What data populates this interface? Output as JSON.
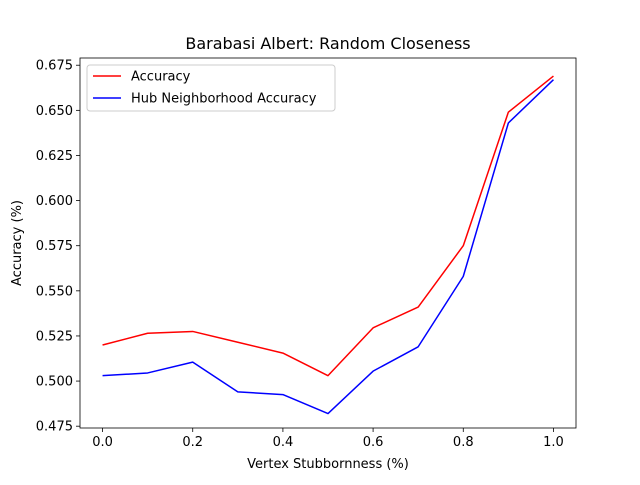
{
  "chart_data": {
    "type": "line",
    "title": "Barabasi Albert: Random Closeness",
    "xlabel": "Vertex Stubbornness (%)",
    "ylabel": "Accuracy (%)",
    "x": [
      0.0,
      0.1,
      0.2,
      0.3,
      0.4,
      0.5,
      0.6,
      0.7,
      0.8,
      0.9,
      1.0
    ],
    "xlim": [
      -0.05,
      1.05
    ],
    "ylim": [
      0.474,
      0.679
    ],
    "xticks": [
      0.0,
      0.2,
      0.4,
      0.6,
      0.8,
      1.0
    ],
    "xtick_labels": [
      "0.0",
      "0.2",
      "0.4",
      "0.6",
      "0.8",
      "1.0"
    ],
    "yticks": [
      0.475,
      0.5,
      0.525,
      0.55,
      0.575,
      0.6,
      0.625,
      0.65,
      0.675
    ],
    "ytick_labels": [
      "0.475",
      "0.500",
      "0.525",
      "0.550",
      "0.575",
      "0.600",
      "0.625",
      "0.650",
      "0.675"
    ],
    "grid": false,
    "legend_position": "top-left",
    "series": [
      {
        "name": "Accuracy",
        "color": "#ff0000",
        "values": [
          0.52,
          0.5265,
          0.5275,
          0.5215,
          0.5155,
          0.503,
          0.5295,
          0.541,
          0.575,
          0.649,
          0.669
        ]
      },
      {
        "name": "Hub Neighborhood Accuracy",
        "color": "#0000ff",
        "values": [
          0.503,
          0.5045,
          0.5105,
          0.494,
          0.4925,
          0.482,
          0.5055,
          0.519,
          0.558,
          0.643,
          0.667
        ]
      }
    ]
  }
}
